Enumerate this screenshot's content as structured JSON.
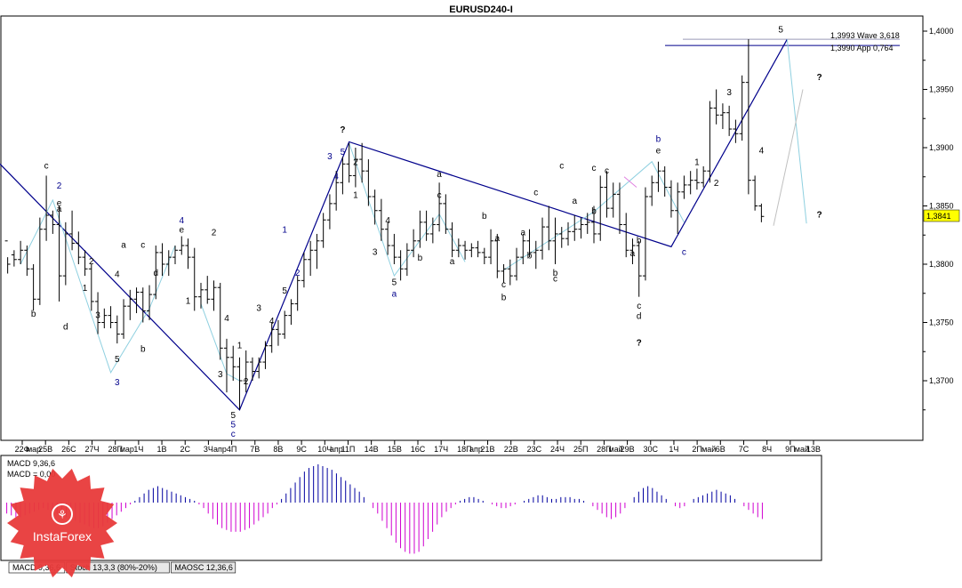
{
  "chart_data": {
    "type": "candlestick",
    "title": "EURUSD240-I",
    "ylim": [
      1.3655,
      1.402
    ],
    "y_ticks": [
      "1,4000",
      "1,3950",
      "1,3900",
      "1,3850",
      "1,3800",
      "1,3750",
      "1,3700"
    ],
    "y_tick_values": [
      1.4,
      1.395,
      1.39,
      1.385,
      1.38,
      1.375,
      1.37
    ],
    "current_price": {
      "value": 1.3841,
      "label": "1,3841"
    },
    "level_lines": [
      {
        "label": "1,3993 Wave 3,618",
        "value": 1.3993,
        "color": "#9a9ab8"
      },
      {
        "label": "1,3990 App 0,764",
        "value": 1.399,
        "color": "#00008b"
      }
    ],
    "x_ticks": [
      "22Ф",
      "25В",
      "26С",
      "27Ч",
      "28П",
      "1Ч",
      "1В",
      "2С",
      "3Ч",
      "4П",
      "7В",
      "8В",
      "9С",
      "10Ч",
      "11П",
      "14В",
      "15В",
      "16С",
      "17Ч",
      "18П",
      "21В",
      "22В",
      "23С",
      "24Ч",
      "25П",
      "28П",
      "29В",
      "30С",
      "1Ч",
      "2П",
      "6В",
      "7С",
      "8Ч",
      "9П",
      "13В"
    ],
    "x_month_labels": [
      "мар",
      "мар",
      "апр",
      "апр",
      "апр",
      "май",
      "май",
      "май"
    ],
    "bars": [
      [
        1.382,
        1.3806,
        1.3792,
        1.38
      ],
      [
        1.3808,
        1.3812,
        1.3798,
        1.3804
      ],
      [
        1.3804,
        1.382,
        1.38,
        1.3812
      ],
      [
        1.3812,
        1.3816,
        1.379,
        1.3796
      ],
      [
        1.3796,
        1.38,
        1.376,
        1.377
      ],
      [
        1.377,
        1.384,
        1.3765,
        1.383
      ],
      [
        1.383,
        1.3876,
        1.382,
        1.3842
      ],
      [
        1.3842,
        1.3846,
        1.3826,
        1.3834
      ],
      [
        1.3834,
        1.385,
        1.3768,
        1.379
      ],
      [
        1.379,
        1.3836,
        1.3782,
        1.3826
      ],
      [
        1.3826,
        1.3846,
        1.3812,
        1.3818
      ],
      [
        1.3818,
        1.3828,
        1.38,
        1.3806
      ],
      [
        1.3806,
        1.3812,
        1.379,
        1.3796
      ],
      [
        1.3796,
        1.38,
        1.376,
        1.3768
      ],
      [
        1.3768,
        1.3776,
        1.374,
        1.375
      ],
      [
        1.375,
        1.3762,
        1.3745,
        1.3756
      ],
      [
        1.3756,
        1.3764,
        1.3745,
        1.375
      ],
      [
        1.375,
        1.3756,
        1.3732,
        1.374
      ],
      [
        1.374,
        1.377,
        1.3736,
        1.3764
      ],
      [
        1.3764,
        1.3778,
        1.3752,
        1.377
      ],
      [
        1.377,
        1.378,
        1.3758,
        1.3776
      ],
      [
        1.3776,
        1.378,
        1.375,
        1.376
      ],
      [
        1.376,
        1.3782,
        1.3752,
        1.3774
      ],
      [
        1.3774,
        1.3816,
        1.377,
        1.381
      ],
      [
        1.381,
        1.3818,
        1.379,
        1.38
      ],
      [
        1.38,
        1.3812,
        1.379,
        1.3806
      ],
      [
        1.3806,
        1.3816,
        1.38,
        1.3812
      ],
      [
        1.3812,
        1.3824,
        1.3808,
        1.3816
      ],
      [
        1.3816,
        1.3822,
        1.3796,
        1.3806
      ],
      [
        1.3806,
        1.3814,
        1.376,
        1.3772
      ],
      [
        1.3772,
        1.3784,
        1.3762,
        1.3778
      ],
      [
        1.3778,
        1.379,
        1.3766,
        1.377
      ],
      [
        1.377,
        1.3786,
        1.376,
        1.378
      ],
      [
        1.378,
        1.3784,
        1.3718,
        1.3728
      ],
      [
        1.3728,
        1.3736,
        1.369,
        1.372
      ],
      [
        1.372,
        1.373,
        1.37,
        1.3712
      ],
      [
        1.3712,
        1.372,
        1.3675,
        1.37
      ],
      [
        1.37,
        1.3726,
        1.369,
        1.3716
      ],
      [
        1.3716,
        1.372,
        1.37,
        1.3708
      ],
      [
        1.3708,
        1.372,
        1.3702,
        1.3716
      ],
      [
        1.3716,
        1.3734,
        1.371,
        1.373
      ],
      [
        1.373,
        1.375,
        1.3724,
        1.3744
      ],
      [
        1.3744,
        1.3752,
        1.373,
        1.374
      ],
      [
        1.374,
        1.376,
        1.3736,
        1.3756
      ],
      [
        1.3756,
        1.377,
        1.3748,
        1.3766
      ],
      [
        1.3766,
        1.379,
        1.376,
        1.3786
      ],
      [
        1.3786,
        1.381,
        1.378,
        1.3804
      ],
      [
        1.3804,
        1.382,
        1.379,
        1.3812
      ],
      [
        1.3812,
        1.3826,
        1.3796,
        1.382
      ],
      [
        1.382,
        1.3844,
        1.3814,
        1.3838
      ],
      [
        1.3838,
        1.386,
        1.383,
        1.3852
      ],
      [
        1.3852,
        1.388,
        1.3846,
        1.387
      ],
      [
        1.387,
        1.3892,
        1.386,
        1.3886
      ],
      [
        1.3886,
        1.3904,
        1.387,
        1.3876
      ],
      [
        1.3876,
        1.39,
        1.3866,
        1.389
      ],
      [
        1.389,
        1.3904,
        1.387,
        1.388
      ],
      [
        1.388,
        1.389,
        1.385,
        1.3858
      ],
      [
        1.3858,
        1.3864,
        1.3834,
        1.3846
      ],
      [
        1.3846,
        1.3856,
        1.382,
        1.383
      ],
      [
        1.383,
        1.3836,
        1.3808,
        1.3816
      ],
      [
        1.3816,
        1.3826,
        1.38,
        1.3806
      ],
      [
        1.3806,
        1.3812,
        1.3786,
        1.3796
      ],
      [
        1.3796,
        1.3818,
        1.379,
        1.3812
      ],
      [
        1.3812,
        1.383,
        1.3806,
        1.382
      ],
      [
        1.382,
        1.3846,
        1.3814,
        1.3836
      ],
      [
        1.3836,
        1.3846,
        1.382,
        1.3826
      ],
      [
        1.3826,
        1.384,
        1.3818,
        1.3834
      ],
      [
        1.3834,
        1.387,
        1.3828,
        1.3852
      ],
      [
        1.3852,
        1.386,
        1.3826,
        1.383
      ],
      [
        1.383,
        1.3836,
        1.3806,
        1.3812
      ],
      [
        1.3812,
        1.3822,
        1.3806,
        1.3816
      ],
      [
        1.3816,
        1.382,
        1.3804,
        1.3812
      ],
      [
        1.3812,
        1.3818,
        1.3806,
        1.3814
      ],
      [
        1.3814,
        1.382,
        1.3806,
        1.381
      ],
      [
        1.381,
        1.3814,
        1.38,
        1.3806
      ],
      [
        1.3806,
        1.383,
        1.38,
        1.382
      ],
      [
        1.382,
        1.3826,
        1.3788,
        1.3794
      ],
      [
        1.3794,
        1.38,
        1.3784,
        1.3796
      ],
      [
        1.3796,
        1.3804,
        1.3782,
        1.379
      ],
      [
        1.379,
        1.3814,
        1.3786,
        1.3806
      ],
      [
        1.3806,
        1.3826,
        1.38,
        1.382
      ],
      [
        1.382,
        1.383,
        1.3806,
        1.381
      ],
      [
        1.381,
        1.382,
        1.3796,
        1.3812
      ],
      [
        1.3812,
        1.384,
        1.3804,
        1.3832
      ],
      [
        1.3832,
        1.385,
        1.3812,
        1.382
      ],
      [
        1.382,
        1.384,
        1.38,
        1.3826
      ],
      [
        1.3826,
        1.3832,
        1.3814,
        1.3822
      ],
      [
        1.3822,
        1.3836,
        1.3816,
        1.3828
      ],
      [
        1.3828,
        1.3842,
        1.382,
        1.383
      ],
      [
        1.383,
        1.384,
        1.3822,
        1.3834
      ],
      [
        1.3834,
        1.3844,
        1.3826,
        1.3836
      ],
      [
        1.3836,
        1.385,
        1.3818,
        1.3826
      ],
      [
        1.3826,
        1.3876,
        1.382,
        1.3866
      ],
      [
        1.3866,
        1.388,
        1.384,
        1.3848
      ],
      [
        1.3848,
        1.387,
        1.384,
        1.386
      ],
      [
        1.386,
        1.387,
        1.3826,
        1.3834
      ],
      [
        1.3834,
        1.3844,
        1.3806,
        1.3812
      ],
      [
        1.3812,
        1.3822,
        1.38,
        1.3816
      ],
      [
        1.3816,
        1.382,
        1.3772,
        1.379
      ],
      [
        1.379,
        1.3866,
        1.3786,
        1.3858
      ],
      [
        1.3858,
        1.3876,
        1.385,
        1.387
      ],
      [
        1.387,
        1.3888,
        1.3862,
        1.388
      ],
      [
        1.388,
        1.3884,
        1.3858,
        1.3866
      ],
      [
        1.3866,
        1.3872,
        1.384,
        1.3846
      ],
      [
        1.3846,
        1.387,
        1.3826,
        1.3862
      ],
      [
        1.3862,
        1.3876,
        1.3856,
        1.3868
      ],
      [
        1.3868,
        1.388,
        1.386,
        1.3872
      ],
      [
        1.3872,
        1.3882,
        1.3864,
        1.387
      ],
      [
        1.387,
        1.3884,
        1.3866,
        1.388
      ],
      [
        1.388,
        1.394,
        1.387,
        1.3934
      ],
      [
        1.3934,
        1.395,
        1.392,
        1.3928
      ],
      [
        1.3928,
        1.3938,
        1.3916,
        1.393
      ],
      [
        1.393,
        1.3936,
        1.391,
        1.3916
      ],
      [
        1.3916,
        1.3924,
        1.3904,
        1.3912
      ],
      [
        1.3912,
        1.3962,
        1.3906,
        1.3956
      ],
      [
        1.3956,
        1.3993,
        1.386,
        1.3872
      ],
      [
        1.3872,
        1.3876,
        1.3846,
        1.385
      ],
      [
        1.385,
        1.3852,
        1.3836,
        1.3841
      ]
    ],
    "wave_labels": [
      {
        "t": "c",
        "c": "#000"
      },
      {
        "t": "2",
        "c": "#00008b"
      },
      {
        "t": "e",
        "c": "#000"
      },
      {
        "t": "b",
        "c": "#000"
      },
      {
        "t": "d",
        "c": "#000"
      },
      {
        "t": "a",
        "c": "#000"
      },
      {
        "t": "2",
        "c": "#000"
      },
      {
        "t": "1",
        "c": "#000"
      },
      {
        "t": "4",
        "c": "#000"
      },
      {
        "t": "3",
        "c": "#000"
      },
      {
        "t": "5",
        "c": "#000"
      },
      {
        "t": "3",
        "c": "#00008b"
      },
      {
        "t": "a",
        "c": "#000"
      },
      {
        "t": "b",
        "c": "#000"
      },
      {
        "t": "c",
        "c": "#000"
      },
      {
        "t": "d",
        "c": "#000"
      },
      {
        "t": "4",
        "c": "#00008b"
      },
      {
        "t": "e",
        "c": "#000"
      },
      {
        "t": "1",
        "c": "#000"
      },
      {
        "t": "2",
        "c": "#000"
      },
      {
        "t": "3",
        "c": "#000"
      },
      {
        "t": "4",
        "c": "#000"
      },
      {
        "t": "5",
        "c": "#000"
      },
      {
        "t": "5",
        "c": "#00008b"
      },
      {
        "t": "c",
        "c": "#00008b"
      },
      {
        "t": "1",
        "c": "#000"
      },
      {
        "t": "2",
        "c": "#000"
      },
      {
        "t": "3",
        "c": "#000"
      },
      {
        "t": "4",
        "c": "#000"
      },
      {
        "t": "5",
        "c": "#000"
      },
      {
        "t": "1",
        "c": "#00008b"
      },
      {
        "t": "2",
        "c": "#00008b"
      },
      {
        "t": "3",
        "c": "#00008b"
      },
      {
        "t": "4",
        "c": "#00008b"
      },
      {
        "t": "5",
        "c": "#00008b"
      },
      {
        "t": "?",
        "c": "#000"
      },
      {
        "t": "2",
        "c": "#000"
      },
      {
        "t": "1",
        "c": "#000"
      },
      {
        "t": "3",
        "c": "#000"
      },
      {
        "t": "4",
        "c": "#000"
      },
      {
        "t": "5",
        "c": "#000"
      },
      {
        "t": "a",
        "c": "#00008b"
      },
      {
        "t": "a",
        "c": "#000"
      },
      {
        "t": "b",
        "c": "#000"
      },
      {
        "t": "c",
        "c": "#000"
      },
      {
        "t": "a",
        "c": "#000"
      },
      {
        "t": "a",
        "c": "#000"
      },
      {
        "t": "b",
        "c": "#000"
      },
      {
        "t": "c",
        "c": "#000"
      },
      {
        "t": "b",
        "c": "#000"
      },
      {
        "t": "a",
        "c": "#000"
      },
      {
        "t": "c",
        "c": "#000"
      },
      {
        "t": "b",
        "c": "#000"
      },
      {
        "t": "b",
        "c": "#000"
      },
      {
        "t": "c",
        "c": "#000"
      },
      {
        "t": "a",
        "c": "#000"
      },
      {
        "t": "c",
        "c": "#000"
      },
      {
        "t": "b",
        "c": "#000"
      },
      {
        "t": "c",
        "c": "#000"
      },
      {
        "t": "c",
        "c": "#000"
      },
      {
        "t": "b",
        "c": "#00008b"
      },
      {
        "t": "e",
        "c": "#000"
      },
      {
        "t": "b",
        "c": "#000"
      },
      {
        "t": "a",
        "c": "#000"
      },
      {
        "t": "c",
        "c": "#000"
      },
      {
        "t": "d",
        "c": "#000"
      },
      {
        "t": "?",
        "c": "#000"
      },
      {
        "t": "c",
        "c": "#00008b"
      },
      {
        "t": "1",
        "c": "#000"
      },
      {
        "t": "2",
        "c": "#000"
      },
      {
        "t": "3",
        "c": "#000"
      },
      {
        "t": "4",
        "c": "#000"
      },
      {
        "t": "5",
        "c": "#000"
      },
      {
        "t": "?",
        "c": "#000"
      },
      {
        "t": "?",
        "c": "#000"
      }
    ],
    "indicator": {
      "name": "MACD 9,36,6",
      "label2": "MACD = 0,00",
      "values": [
        -6,
        -7,
        -8,
        -8,
        -7,
        -6,
        -5,
        -4,
        -3,
        -4,
        -5,
        -6,
        -7,
        -8,
        -9,
        -10,
        -11,
        -12,
        -13,
        -14,
        -14,
        -13,
        -11,
        -9,
        -7,
        -5,
        -3,
        -1,
        1,
        3,
        5,
        7,
        8,
        9,
        8,
        7,
        6,
        5,
        4,
        3,
        2,
        1,
        -1,
        -3,
        -6,
        -9,
        -12,
        -14,
        -15,
        -16,
        -16,
        -16,
        -15,
        -14,
        -12,
        -10,
        -8,
        -6,
        -3,
        -1,
        2,
        5,
        8,
        11,
        14,
        17,
        19,
        20,
        21,
        20,
        19,
        18,
        16,
        14,
        12,
        10,
        8,
        6,
        3,
        0,
        -3,
        -6,
        -10,
        -14,
        -18,
        -22,
        -25,
        -27,
        -28,
        -28,
        -27,
        -24,
        -20,
        -16,
        -12,
        -8,
        -5,
        -3,
        -1,
        1,
        2,
        3,
        3,
        2,
        1,
        0,
        -1,
        -2,
        -3,
        -3,
        -2,
        -1,
        0,
        1,
        2,
        3,
        4,
        4,
        3,
        2,
        2,
        3,
        3,
        3,
        2,
        2,
        1,
        0,
        -2,
        -4,
        -6,
        -8,
        -9,
        -8,
        -6,
        -3,
        0,
        3,
        6,
        8,
        9,
        8,
        6,
        4,
        2,
        0,
        -2,
        -3,
        -2,
        0,
        2,
        3,
        4,
        5,
        6,
        7,
        6,
        5,
        4,
        2,
        0,
        -2,
        -4,
        -6,
        -8,
        -9
      ]
    },
    "tabs": [
      "MACD 9,36,6",
      "Stoch 13,3,3 (80%-20%)",
      "MAOSC 12,36,6"
    ],
    "logo_text": "InstaForex"
  }
}
